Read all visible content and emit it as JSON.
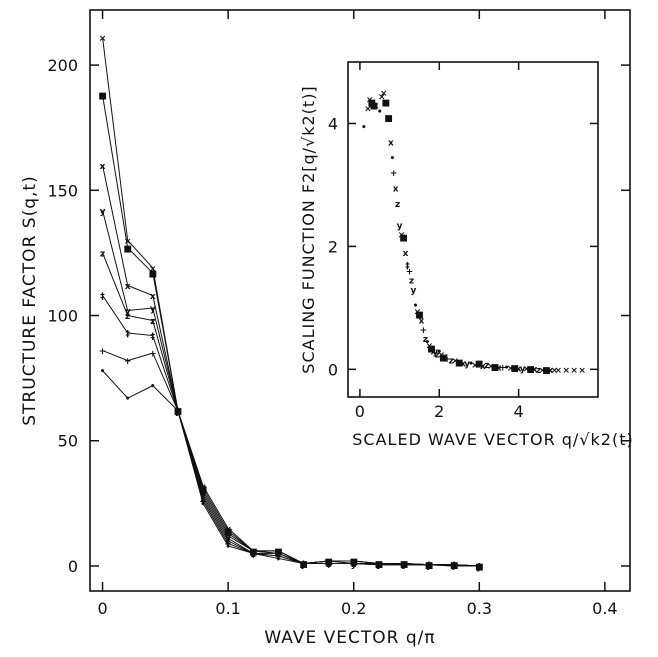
{
  "chart_data": [
    {
      "type": "line",
      "xlabel": "WAVE VECTOR q/π",
      "ylabel": "STRUCTURE FACTOR S(q,t)",
      "xlim": [
        -0.01,
        0.42
      ],
      "ylim": [
        -10,
        222
      ],
      "x_ticks": [
        0,
        0.1,
        0.2,
        0.3,
        0.4
      ],
      "x_tick_labels": [
        "0",
        "0.1",
        "0.2",
        "0.3",
        "0.4"
      ],
      "y_ticks": [
        0,
        50,
        100,
        150,
        200
      ],
      "y_tick_labels": [
        "0",
        "50",
        "100",
        "150",
        "200"
      ],
      "grid": false,
      "x": [
        0,
        0.02,
        0.04,
        0.06,
        0.08,
        0.1,
        0.12,
        0.14,
        0.16,
        0.18,
        0.2,
        0.22,
        0.24,
        0.26,
        0.28,
        0.3
      ],
      "series": [
        {
          "marker": "×",
          "values": [
            211,
            130,
            119,
            62,
            32,
            15,
            6,
            6,
            1,
            2,
            2,
            1,
            1,
            0.5,
            0.5,
            0
          ]
        },
        {
          "marker": "■",
          "values": [
            188,
            127,
            117,
            62,
            31,
            14,
            6,
            6,
            1,
            2,
            2,
            1,
            1,
            0.5,
            0.5,
            0
          ]
        },
        {
          "marker": "x",
          "values": [
            160,
            112,
            108,
            62,
            30,
            13,
            6,
            5,
            1,
            2,
            2,
            1,
            1,
            0.5,
            0.5,
            0
          ]
        },
        {
          "marker": "y",
          "values": [
            142,
            102,
            103,
            62,
            29,
            12,
            6,
            5,
            1,
            2,
            1,
            1,
            1,
            0.5,
            0.5,
            0
          ]
        },
        {
          "marker": "z",
          "values": [
            125,
            100,
            98,
            62,
            28,
            11,
            5,
            5,
            1,
            1,
            1,
            1,
            0.5,
            0.5,
            0.5,
            0
          ]
        },
        {
          "marker": "‡",
          "values": [
            108,
            93,
            92,
            62,
            27,
            10,
            5,
            4,
            1,
            1,
            1,
            0.5,
            0.5,
            0.5,
            0.5,
            0
          ]
        },
        {
          "marker": "+",
          "values": [
            86,
            82,
            85,
            62,
            26,
            9,
            5,
            4,
            1,
            1,
            1,
            0.5,
            0.5,
            0.5,
            0,
            0
          ]
        },
        {
          "marker": "•",
          "values": [
            78,
            67,
            72,
            62,
            25,
            8,
            5,
            3,
            1,
            1,
            1,
            0.5,
            0.5,
            0.5,
            0,
            0
          ]
        }
      ]
    },
    {
      "type": "scatter",
      "xlabel": "SCALED WAVE VECTOR q/√k2(t)",
      "ylabel": "SCALING FUNCTION F2[q/√k2(t)]",
      "xlim": [
        -0.3,
        6.0
      ],
      "ylim": [
        -0.45,
        5.0
      ],
      "x_ticks": [
        0,
        2,
        4
      ],
      "x_tick_labels": [
        "0",
        "2",
        "4"
      ],
      "y_ticks": [
        0,
        2,
        4
      ],
      "y_tick_labels": [
        "0",
        "2",
        "4"
      ],
      "grid": false,
      "points": [
        {
          "x": 0.1,
          "y": 3.95,
          "m": "•"
        },
        {
          "x": 0.2,
          "y": 4.25,
          "m": "×"
        },
        {
          "x": 0.25,
          "y": 4.4,
          "m": "×"
        },
        {
          "x": 0.3,
          "y": 4.35,
          "m": "■"
        },
        {
          "x": 0.35,
          "y": 4.3,
          "m": "■"
        },
        {
          "x": 0.4,
          "y": 4.3,
          "m": "x"
        },
        {
          "x": 0.5,
          "y": 4.2,
          "m": "•"
        },
        {
          "x": 0.55,
          "y": 4.45,
          "m": "×"
        },
        {
          "x": 0.6,
          "y": 4.5,
          "m": "×"
        },
        {
          "x": 0.65,
          "y": 4.35,
          "m": "■"
        },
        {
          "x": 0.72,
          "y": 4.1,
          "m": "■"
        },
        {
          "x": 0.78,
          "y": 3.7,
          "m": "x"
        },
        {
          "x": 0.82,
          "y": 3.45,
          "m": "•"
        },
        {
          "x": 0.85,
          "y": 3.2,
          "m": "+"
        },
        {
          "x": 0.9,
          "y": 2.95,
          "m": "x"
        },
        {
          "x": 0.95,
          "y": 2.7,
          "m": "z"
        },
        {
          "x": 1.0,
          "y": 2.35,
          "m": "y"
        },
        {
          "x": 1.05,
          "y": 2.2,
          "m": "×"
        },
        {
          "x": 1.1,
          "y": 2.15,
          "m": "■"
        },
        {
          "x": 1.15,
          "y": 1.9,
          "m": "x"
        },
        {
          "x": 1.2,
          "y": 1.7,
          "m": "‡"
        },
        {
          "x": 1.25,
          "y": 1.6,
          "m": "+"
        },
        {
          "x": 1.3,
          "y": 1.45,
          "m": "z"
        },
        {
          "x": 1.35,
          "y": 1.3,
          "m": "y"
        },
        {
          "x": 1.4,
          "y": 1.05,
          "m": "•"
        },
        {
          "x": 1.45,
          "y": 0.95,
          "m": "×"
        },
        {
          "x": 1.5,
          "y": 0.9,
          "m": "■"
        },
        {
          "x": 1.55,
          "y": 0.8,
          "m": "x"
        },
        {
          "x": 1.6,
          "y": 0.65,
          "m": "+"
        },
        {
          "x": 1.65,
          "y": 0.5,
          "m": "z"
        },
        {
          "x": 1.7,
          "y": 0.45,
          "m": "•"
        },
        {
          "x": 1.75,
          "y": 0.4,
          "m": "×"
        },
        {
          "x": 1.8,
          "y": 0.35,
          "m": "■"
        },
        {
          "x": 1.85,
          "y": 0.3,
          "m": "x"
        },
        {
          "x": 1.9,
          "y": 0.3,
          "m": "y"
        },
        {
          "x": 1.95,
          "y": 0.25,
          "m": "z"
        },
        {
          "x": 2.0,
          "y": 0.3,
          "m": "•"
        },
        {
          "x": 2.05,
          "y": 0.25,
          "m": "×"
        },
        {
          "x": 2.1,
          "y": 0.2,
          "m": "■"
        },
        {
          "x": 2.15,
          "y": 0.22,
          "m": "x"
        },
        {
          "x": 2.2,
          "y": 0.18,
          "m": "+"
        },
        {
          "x": 2.3,
          "y": 0.15,
          "m": "z"
        },
        {
          "x": 2.4,
          "y": 0.15,
          "m": "×"
        },
        {
          "x": 2.5,
          "y": 0.12,
          "m": "■"
        },
        {
          "x": 2.6,
          "y": 0.1,
          "m": "x"
        },
        {
          "x": 2.7,
          "y": 0.1,
          "m": "y"
        },
        {
          "x": 2.8,
          "y": 0.1,
          "m": "•"
        },
        {
          "x": 2.9,
          "y": 0.08,
          "m": "×"
        },
        {
          "x": 3.0,
          "y": 0.1,
          "m": "■"
        },
        {
          "x": 3.1,
          "y": 0.06,
          "m": "x"
        },
        {
          "x": 3.2,
          "y": 0.08,
          "m": "z"
        },
        {
          "x": 3.3,
          "y": 0.06,
          "m": "×"
        },
        {
          "x": 3.4,
          "y": 0.05,
          "m": "■"
        },
        {
          "x": 3.5,
          "y": 0.04,
          "m": "x"
        },
        {
          "x": 3.6,
          "y": 0.04,
          "m": "+"
        },
        {
          "x": 3.7,
          "y": 0.04,
          "m": "•"
        },
        {
          "x": 3.8,
          "y": 0.03,
          "m": "×"
        },
        {
          "x": 3.9,
          "y": 0.03,
          "m": "■"
        },
        {
          "x": 4.0,
          "y": 0.02,
          "m": "x"
        },
        {
          "x": 4.1,
          "y": 0.02,
          "m": "y"
        },
        {
          "x": 4.2,
          "y": 0.02,
          "m": "×"
        },
        {
          "x": 4.3,
          "y": 0.01,
          "m": "■"
        },
        {
          "x": 4.4,
          "y": 0.01,
          "m": "x"
        },
        {
          "x": 4.5,
          "y": 0.0,
          "m": "z"
        },
        {
          "x": 4.6,
          "y": 0.0,
          "m": "×"
        },
        {
          "x": 4.7,
          "y": 0.0,
          "m": "■"
        },
        {
          "x": 4.8,
          "y": 0.0,
          "m": "x"
        },
        {
          "x": 4.9,
          "y": 0.0,
          "m": "×"
        },
        {
          "x": 5.0,
          "y": 0.0,
          "m": "×"
        },
        {
          "x": 5.2,
          "y": 0.0,
          "m": "×"
        },
        {
          "x": 5.4,
          "y": 0.0,
          "m": "×"
        },
        {
          "x": 5.6,
          "y": 0.0,
          "m": "×"
        }
      ]
    }
  ]
}
